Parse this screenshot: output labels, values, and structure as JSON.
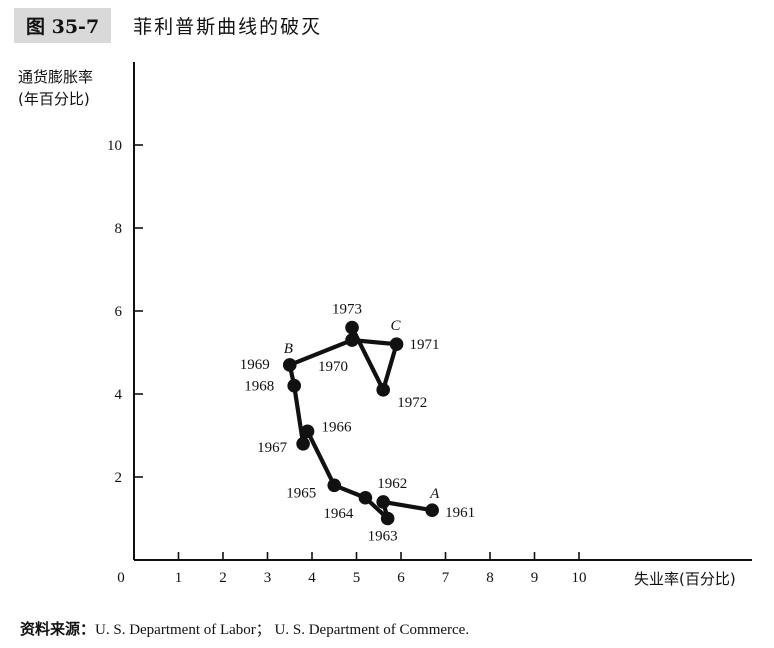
{
  "header": {
    "figure_number": "图 35-7",
    "figure_title": "菲利普斯曲线的破灭"
  },
  "axes": {
    "ylabel_line1": "通货膨胀率",
    "ylabel_line2": "(年百分比)",
    "xlabel": "失业率(百分比)"
  },
  "source": {
    "label": "资料来源：",
    "text": "U. S.  Department of Labor； U. S.  Department of Commerce."
  },
  "chart_data": {
    "type": "line",
    "xlim": [
      0,
      14
    ],
    "ylim": [
      0,
      12
    ],
    "x_ticks": [
      0,
      1,
      2,
      3,
      4,
      5,
      6,
      7,
      8,
      9,
      10
    ],
    "y_ticks": [
      2,
      4,
      6,
      8,
      10
    ],
    "grid": false,
    "points": [
      {
        "year": "1961",
        "x": 6.7,
        "y": 1.2
      },
      {
        "year": "1962",
        "x": 5.6,
        "y": 1.4
      },
      {
        "year": "1963",
        "x": 5.7,
        "y": 1.0
      },
      {
        "year": "1964",
        "x": 5.2,
        "y": 1.5
      },
      {
        "year": "1965",
        "x": 4.5,
        "y": 1.8
      },
      {
        "year": "1966",
        "x": 3.9,
        "y": 3.1
      },
      {
        "year": "1967",
        "x": 3.8,
        "y": 2.8
      },
      {
        "year": "1968",
        "x": 3.6,
        "y": 4.2
      },
      {
        "year": "1969",
        "x": 3.5,
        "y": 4.7
      },
      {
        "year": "1970",
        "x": 4.9,
        "y": 5.3
      },
      {
        "year": "1971",
        "x": 5.9,
        "y": 5.2
      },
      {
        "year": "1972",
        "x": 5.6,
        "y": 4.1
      },
      {
        "year": "1973",
        "x": 4.9,
        "y": 5.6
      }
    ],
    "point_annotations": [
      {
        "text": "A",
        "near": "1961"
      },
      {
        "text": "B",
        "near": "1969"
      },
      {
        "text": "C",
        "near": "1971"
      }
    ]
  }
}
